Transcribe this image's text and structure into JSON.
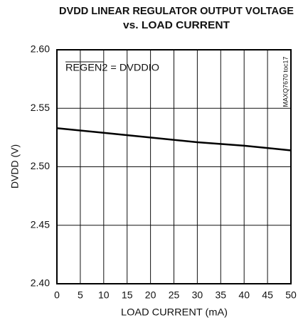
{
  "chart_data": {
    "type": "line",
    "title": [
      "DVDD LINEAR REGULATOR OUTPUT VOLTAGE",
      "vs. LOAD CURRENT"
    ],
    "xlabel": "LOAD CURRENT (mA)",
    "ylabel": "DVDD (V)",
    "annotation": "REGEN2 = DVDDIO",
    "side_note": "MAXQ7670 toc17",
    "x": [
      0,
      10,
      20,
      30,
      40,
      50
    ],
    "series": [
      {
        "name": "DVDD",
        "color": "#000000",
        "values": [
          2.533,
          2.529,
          2.525,
          2.521,
          2.518,
          2.514
        ]
      }
    ],
    "xlim": [
      0,
      50
    ],
    "xticks": [
      0,
      5,
      10,
      15,
      20,
      25,
      30,
      35,
      40,
      45,
      50
    ],
    "ylim": [
      2.4,
      2.6
    ],
    "yticks": [
      {
        "value": 2.4,
        "label": "2.40"
      },
      2.45,
      {
        "value": 2.5,
        "label": "2.50"
      },
      2.55,
      {
        "value": 2.6,
        "label": "2.60"
      }
    ],
    "grid": true
  }
}
